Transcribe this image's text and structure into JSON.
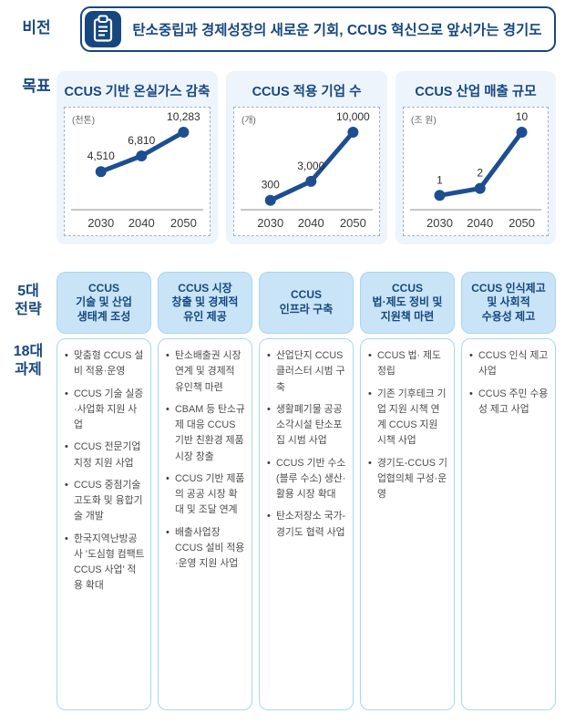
{
  "vision": {
    "label": "비전",
    "icon": "clipboard-icon",
    "text": "탄소중립과 경제성장의 새로운 기회, CCUS 혁신으로 앞서가는 경기도"
  },
  "goals": {
    "label": "목표"
  },
  "chart_data": [
    {
      "type": "line",
      "title": "CCUS 기반 온실가스 감축",
      "unit": "(천톤)",
      "x": [
        "2030",
        "2040",
        "2050"
      ],
      "values": [
        4510,
        6810,
        10283
      ],
      "value_labels": [
        "4,510",
        "6,810",
        "10,283"
      ],
      "ylim": [
        0,
        10283
      ],
      "grid": false,
      "line_color": "#1d4e91"
    },
    {
      "type": "line",
      "title": "CCUS 적용 기업 수",
      "unit": "(개)",
      "x": [
        "2030",
        "2040",
        "2050"
      ],
      "values": [
        300,
        3000,
        10000
      ],
      "value_labels": [
        "300",
        "3,000",
        "10,000"
      ],
      "ylim": [
        0,
        10000
      ],
      "grid": false,
      "line_color": "#1d4e91"
    },
    {
      "type": "line",
      "title": "CCUS 산업 매출 규모",
      "unit": "(조 원)",
      "x": [
        "2030",
        "2040",
        "2050"
      ],
      "values": [
        1,
        2,
        10
      ],
      "value_labels": [
        "1",
        "2",
        "10"
      ],
      "ylim": [
        0,
        10
      ],
      "grid": false,
      "line_color": "#1d4e91"
    }
  ],
  "strategies": {
    "label_top": "5대\n전략",
    "label_bottom": "18대\n과제",
    "columns": [
      {
        "header": "CCUS\n기술 및 산업\n생태계 조성",
        "items": [
          "맞춤형 CCUS 설비 적용·운영",
          "CCUS 기술 실증·사업화 지원 사업",
          "CCUS 전문기업 지정 지원 사업",
          "CCUS 중점기술 고도화 및 융합기술 개발",
          "한국지역난방공사 '도심형 컴팩트 CCUS 사업' 적용 확대"
        ]
      },
      {
        "header": "CCUS 시장\n창출 및 경제적\n유인 제공",
        "items": [
          "탄소배출권 시장 연계 및 경제적 유인책 마련",
          "CBAM 등 탄소규제 대응 CCUS 기반 친환경 제품 시장 창출",
          "CCUS 기반 제품의 공공 시장 확대 및 조달 연계",
          "배출사업장 CCUS 설비 적용·운영 지원 사업"
        ]
      },
      {
        "header": "CCUS\n인프라 구축",
        "items": [
          "산업단지 CCUS 클러스터 시범 구축",
          "생활폐기물 공공소각시설 탄소포집 시범 사업",
          "CCUS 기반 수소(블루 수소) 생산·활용 시장 확대",
          "탄소저장소 국가-경기도 협력 사업"
        ]
      },
      {
        "header": "CCUS\n법·제도 정비 및\n지원책 마련",
        "items": [
          "CCUS 법· 제도 정립",
          "기존 기후테크 기업 지원 시책 연계 CCUS 지원 시책 사업",
          "경기도-CCUS 기업협의체 구성·운영"
        ]
      },
      {
        "header": "CCUS 인식제고\n및 사회적\n수용성 제고",
        "items": [
          "CCUS 인식 제고 사업",
          "CCUS 주민 수용성 제고 사업"
        ]
      }
    ]
  },
  "colors": {
    "navy": "#17477f",
    "chart_line": "#1d4e91",
    "header_fill": "#c8e4f6",
    "header_border": "#a9d6f2",
    "body_border": "#a5d8f5",
    "card_bg": "#edf4fb",
    "baseline": "#b3b3b3",
    "task_text": "#4d4d4d"
  }
}
